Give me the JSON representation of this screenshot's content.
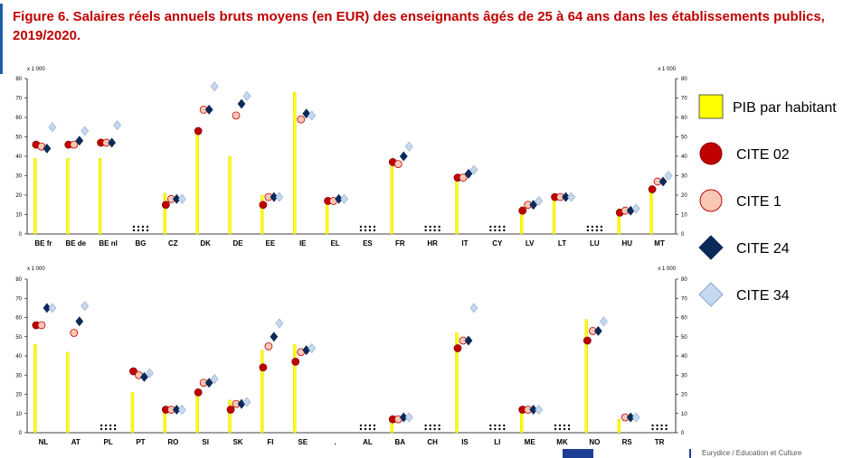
{
  "title": "Figure 6. Salaires réels annuels bruts moyens (en EUR) des enseignants âgés de 25 à 64 ans dans les établissements publics, 2019/2020.",
  "footer": {
    "text": "Eurydice / Education et Culture"
  },
  "chart_data": [
    {
      "type": "bar+scatter",
      "unit_label": "x 1 000",
      "ylim": [
        0,
        80
      ],
      "yticks": [
        0,
        10,
        20,
        30,
        40,
        50,
        60,
        70,
        80
      ],
      "categories": [
        "BE fr",
        "BE de",
        "BE nl",
        "BG",
        "CZ",
        "DK",
        "DE",
        "EE",
        "IE",
        "EL",
        "ES",
        "FR",
        "HR",
        "IT",
        "CY",
        "LV",
        "LT",
        "LU",
        "HU",
        "MT"
      ],
      "gdp": [
        39,
        39,
        39,
        null,
        21,
        52,
        40,
        20,
        73,
        17,
        null,
        35,
        null,
        29,
        null,
        14,
        20,
        null,
        13,
        24
      ],
      "cite02": [
        46,
        46,
        47,
        null,
        15,
        53,
        null,
        15,
        null,
        17,
        null,
        37,
        null,
        29,
        null,
        12,
        19,
        null,
        11,
        23
      ],
      "cite1": [
        45,
        46,
        47,
        null,
        18,
        64,
        61,
        19,
        59,
        17,
        null,
        36,
        null,
        29,
        null,
        15,
        19,
        null,
        12,
        27
      ],
      "cite24": [
        44,
        48,
        47,
        null,
        18,
        64,
        67,
        19,
        62,
        18,
        null,
        40,
        null,
        31,
        null,
        15,
        19,
        null,
        12,
        27
      ],
      "cite34": [
        55,
        53,
        56,
        null,
        18,
        76,
        71,
        19,
        61,
        18,
        null,
        45,
        null,
        33,
        null,
        17,
        19,
        null,
        13,
        30
      ],
      "not_available": [
        "BG",
        "ES",
        "HR",
        "CY",
        "LU"
      ],
      "gdp_not_available": [
        "DE",
        "IE"
      ]
    },
    {
      "type": "bar+scatter",
      "unit_label": "x 1 000",
      "ylim": [
        0,
        80
      ],
      "yticks": [
        0,
        10,
        20,
        30,
        40,
        50,
        60,
        70,
        80
      ],
      "categories": [
        "NL",
        "AT",
        "PL",
        "PT",
        "RO",
        "SI",
        "SK",
        "FI",
        "SE",
        ".",
        "AL",
        "BA",
        "CH",
        "IS",
        "LI",
        "ME",
        "MK",
        "NO",
        "RS",
        "TR"
      ],
      "gdp": [
        46,
        42,
        null,
        21,
        12,
        22,
        17,
        43,
        46,
        null,
        null,
        8,
        null,
        52,
        null,
        11,
        null,
        59,
        7,
        null
      ],
      "cite02": [
        56,
        null,
        null,
        32,
        12,
        21,
        12,
        34,
        37,
        null,
        null,
        7,
        null,
        44,
        null,
        12,
        null,
        48,
        null,
        null
      ],
      "cite1": [
        56,
        52,
        null,
        30,
        12,
        26,
        15,
        45,
        42,
        null,
        null,
        7,
        null,
        48,
        null,
        12,
        null,
        53,
        8,
        null
      ],
      "cite24": [
        65,
        58,
        null,
        29,
        12,
        26,
        15,
        50,
        43,
        null,
        null,
        8,
        null,
        48,
        null,
        12,
        null,
        53,
        8,
        null
      ],
      "cite34": [
        65,
        66,
        null,
        31,
        12,
        28,
        16,
        57,
        44,
        null,
        null,
        8,
        null,
        65,
        null,
        12,
        null,
        58,
        8,
        null
      ],
      "not_available": [
        "PL",
        "AL",
        "CH",
        "LI",
        "MK",
        "TR"
      ],
      "gdp_not_available": [
        "AT",
        "RS"
      ]
    }
  ],
  "legend": [
    {
      "label": "PIB par habitant",
      "symbol": "bar",
      "color": "#ffff00"
    },
    {
      "label": "CITE 02",
      "symbol": "circle",
      "color": "#c00000"
    },
    {
      "label": "CITE 1",
      "symbol": "circle",
      "color": "#f8c8b4"
    },
    {
      "label": "CITE 24",
      "symbol": "diamond",
      "color": "#0b2a5a"
    },
    {
      "label": "CITE 34",
      "symbol": "diamond",
      "color": "#c5d8ef"
    }
  ]
}
